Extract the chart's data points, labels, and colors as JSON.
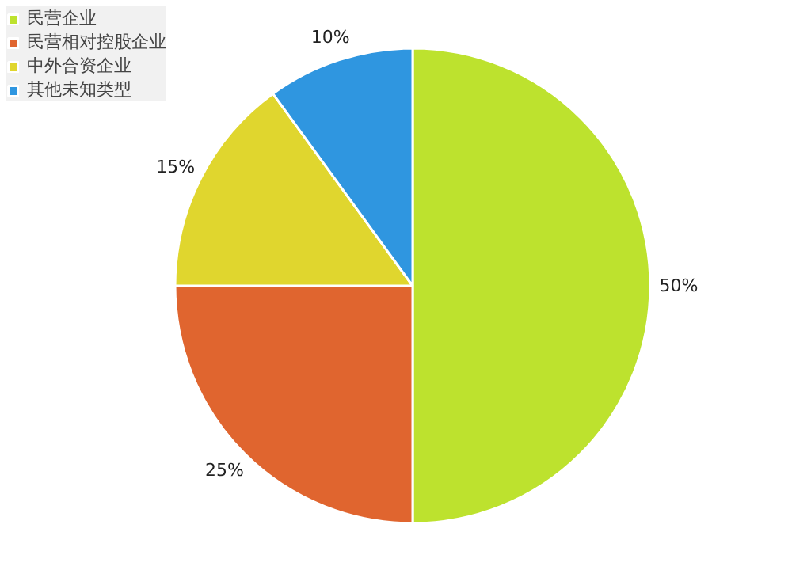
{
  "chart_data": {
    "type": "pie",
    "categories": [
      "民营企业",
      "民营相对控股企业",
      "中外合资企业",
      "其他未知类型"
    ],
    "values": [
      50,
      25,
      15,
      10
    ],
    "colors": [
      "#bde22e",
      "#e0652f",
      "#e0d62e",
      "#2f96e0"
    ],
    "value_labels": [
      "50%",
      "25%",
      "15%",
      "10%"
    ],
    "legend": "top left"
  }
}
